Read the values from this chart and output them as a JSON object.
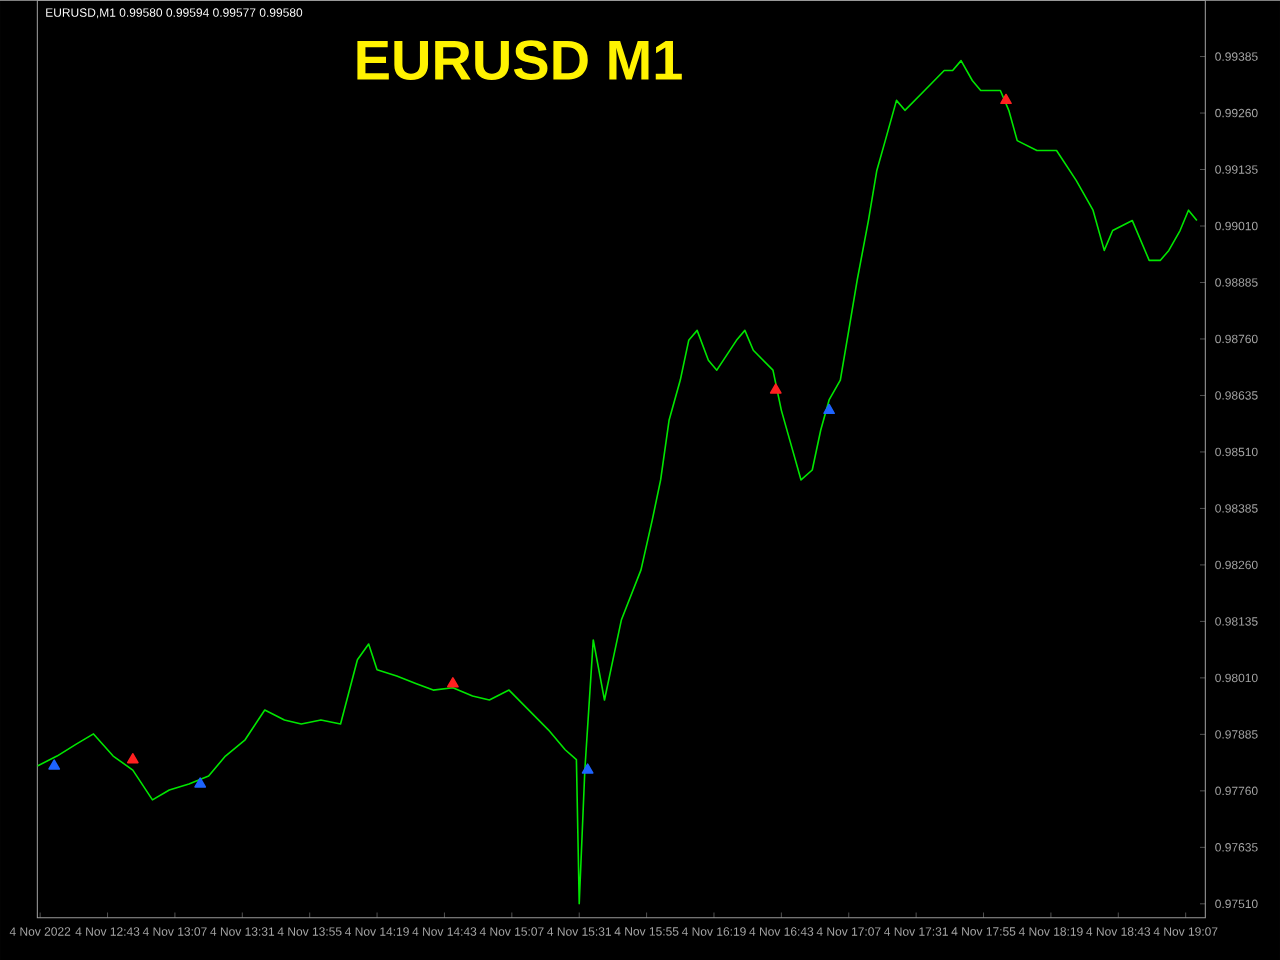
{
  "chart_data": {
    "type": "line",
    "title": "EURUSD M1",
    "annotations": [
      "EURUSD,M1  0.99580 0.99594 0.99577 0.99580"
    ],
    "xlim": [
      "2022-11-04T12:18",
      "2022-11-04T19:14"
    ],
    "ylim": [
      0.97479,
      0.99509
    ],
    "xticks": [
      {
        "value": "2022-11-04T12:19",
        "label": "4 Nov 2022"
      },
      {
        "value": "2022-11-04T12:43",
        "label": "4 Nov 12:43"
      },
      {
        "value": "2022-11-04T13:07",
        "label": "4 Nov 13:07"
      },
      {
        "value": "2022-11-04T13:31",
        "label": "4 Nov 13:31"
      },
      {
        "value": "2022-11-04T13:55",
        "label": "4 Nov 13:55"
      },
      {
        "value": "2022-11-04T14:19",
        "label": "4 Nov 14:19"
      },
      {
        "value": "2022-11-04T14:43",
        "label": "4 Nov 14:43"
      },
      {
        "value": "2022-11-04T15:07",
        "label": "4 Nov 15:07"
      },
      {
        "value": "2022-11-04T15:31",
        "label": "4 Nov 15:31"
      },
      {
        "value": "2022-11-04T15:55",
        "label": "4 Nov 15:55"
      },
      {
        "value": "2022-11-04T16:19",
        "label": "4 Nov 16:19"
      },
      {
        "value": "2022-11-04T16:43",
        "label": "4 Nov 16:43"
      },
      {
        "value": "2022-11-04T17:07",
        "label": "4 Nov 17:07"
      },
      {
        "value": "2022-11-04T17:31",
        "label": "4 Nov 17:31"
      },
      {
        "value": "2022-11-04T17:55",
        "label": "4 Nov 17:55"
      },
      {
        "value": "2022-11-04T18:19",
        "label": "4 Nov 18:19"
      },
      {
        "value": "2022-11-04T18:43",
        "label": "4 Nov 18:43"
      },
      {
        "value": "2022-11-04T19:07",
        "label": "4 Nov 19:07"
      }
    ],
    "yticks": [
      {
        "value": 0.9751,
        "label": "0.97510"
      },
      {
        "value": 0.97635,
        "label": "0.97635"
      },
      {
        "value": 0.9776,
        "label": "0.97760"
      },
      {
        "value": 0.97885,
        "label": "0.97885"
      },
      {
        "value": 0.9801,
        "label": "0.98010"
      },
      {
        "value": 0.98135,
        "label": "0.98135"
      },
      {
        "value": 0.9826,
        "label": "0.98260"
      },
      {
        "value": 0.98385,
        "label": "0.98385"
      },
      {
        "value": 0.9851,
        "label": "0.98510"
      },
      {
        "value": 0.98635,
        "label": "0.98635"
      },
      {
        "value": 0.9876,
        "label": "0.98760"
      },
      {
        "value": 0.98885,
        "label": "0.98885"
      },
      {
        "value": 0.9901,
        "label": "0.99010"
      },
      {
        "value": 0.99135,
        "label": "0.99135"
      },
      {
        "value": 0.9926,
        "label": "0.99260"
      },
      {
        "value": 0.99385,
        "label": "0.99385"
      }
    ],
    "line_style": "solid",
    "series": [
      {
        "color": "#00e600",
        "marker": "none",
        "x": [
          "2022-11-04T12:18",
          "2022-11-04T12:25",
          "2022-11-04T12:32",
          "2022-11-04T12:38",
          "2022-11-04T12:45",
          "2022-11-04T12:52",
          "2022-11-04T12:59",
          "2022-11-04T13:05",
          "2022-11-04T13:12",
          "2022-11-04T13:19",
          "2022-11-04T13:25",
          "2022-11-04T13:32",
          "2022-11-04T13:39",
          "2022-11-04T13:46",
          "2022-11-04T13:52",
          "2022-11-04T13:59",
          "2022-11-04T14:06",
          "2022-11-04T14:12",
          "2022-11-04T14:16",
          "2022-11-04T14:19",
          "2022-11-04T14:26",
          "2022-11-04T14:33",
          "2022-11-04T14:39",
          "2022-11-04T14:46",
          "2022-11-04T14:53",
          "2022-11-04T14:59",
          "2022-11-04T15:06",
          "2022-11-04T15:13",
          "2022-11-04T15:20",
          "2022-11-04T15:26",
          "2022-11-04T15:30",
          "2022-11-04T15:31",
          "2022-11-04T15:33",
          "2022-11-04T15:36",
          "2022-11-04T15:40",
          "2022-11-04T15:43",
          "2022-11-04T15:46",
          "2022-11-04T15:53",
          "2022-11-04T15:57",
          "2022-11-04T16:00",
          "2022-11-04T16:03",
          "2022-11-04T16:07",
          "2022-11-04T16:10",
          "2022-11-04T16:13",
          "2022-11-04T16:17",
          "2022-11-04T16:20",
          "2022-11-04T16:27",
          "2022-11-04T16:30",
          "2022-11-04T16:33",
          "2022-11-04T16:40",
          "2022-11-04T16:43",
          "2022-11-04T16:47",
          "2022-11-04T16:50",
          "2022-11-04T16:54",
          "2022-11-04T16:57",
          "2022-11-04T17:00",
          "2022-11-04T17:04",
          "2022-11-04T17:07",
          "2022-11-04T17:10",
          "2022-11-04T17:14",
          "2022-11-04T17:17",
          "2022-11-04T17:20",
          "2022-11-04T17:24",
          "2022-11-04T17:27",
          "2022-11-04T17:34",
          "2022-11-04T17:41",
          "2022-11-04T17:44",
          "2022-11-04T17:47",
          "2022-11-04T17:51",
          "2022-11-04T17:54",
          "2022-11-04T18:01",
          "2022-11-04T18:04",
          "2022-11-04T18:07",
          "2022-11-04T18:14",
          "2022-11-04T18:21",
          "2022-11-04T18:28",
          "2022-11-04T18:34",
          "2022-11-04T18:38",
          "2022-11-04T18:41",
          "2022-11-04T18:48",
          "2022-11-04T18:54",
          "2022-11-04T18:58",
          "2022-11-04T19:01",
          "2022-11-04T19:05",
          "2022-11-04T19:08",
          "2022-11-04T19:11"
        ],
        "values": [
          0.97815,
          0.97837,
          0.97864,
          0.97886,
          0.97837,
          0.97806,
          0.9774,
          0.97762,
          0.97775,
          0.97793,
          0.97837,
          0.97873,
          0.97939,
          0.97917,
          0.97908,
          0.97917,
          0.97908,
          0.9805,
          0.98085,
          0.98028,
          0.98014,
          0.97997,
          0.97983,
          0.97988,
          0.9797,
          0.97961,
          0.97983,
          0.97939,
          0.97895,
          0.97851,
          0.97829,
          0.9751,
          0.97806,
          0.98094,
          0.97961,
          0.9805,
          0.98138,
          0.98249,
          0.98359,
          0.98448,
          0.9858,
          0.98669,
          0.98757,
          0.98779,
          0.98713,
          0.98691,
          0.98757,
          0.98779,
          0.98735,
          0.98691,
          0.98602,
          0.98514,
          0.98448,
          0.9847,
          0.98558,
          0.98625,
          0.98669,
          0.98779,
          0.9889,
          0.99022,
          0.99133,
          0.99199,
          0.99288,
          0.99266,
          0.9931,
          0.99354,
          0.99354,
          0.99376,
          0.99332,
          0.9931,
          0.9931,
          0.99266,
          0.99199,
          0.99177,
          0.99177,
          0.99111,
          0.99045,
          0.98956,
          0.99,
          0.99022,
          0.98934,
          0.98934,
          0.98956,
          0.99,
          0.99045,
          0.99022
        ]
      },
      {
        "type": "scatter",
        "color": "#1e64ff",
        "marker": "triangle",
        "x": [
          "2022-11-04T12:24",
          "2022-11-04T13:16",
          "2022-11-04T15:34",
          "2022-11-04T17:00"
        ],
        "values": [
          0.97815,
          0.97775,
          0.97806,
          0.98602
        ]
      },
      {
        "type": "scatter",
        "color": "#ff2020",
        "marker": "triangle",
        "x": [
          "2022-11-04T12:52",
          "2022-11-04T14:46",
          "2022-11-04T16:41",
          "2022-11-04T18:03"
        ],
        "values": [
          0.97829,
          0.97997,
          0.98647,
          0.99288
        ]
      }
    ]
  }
}
